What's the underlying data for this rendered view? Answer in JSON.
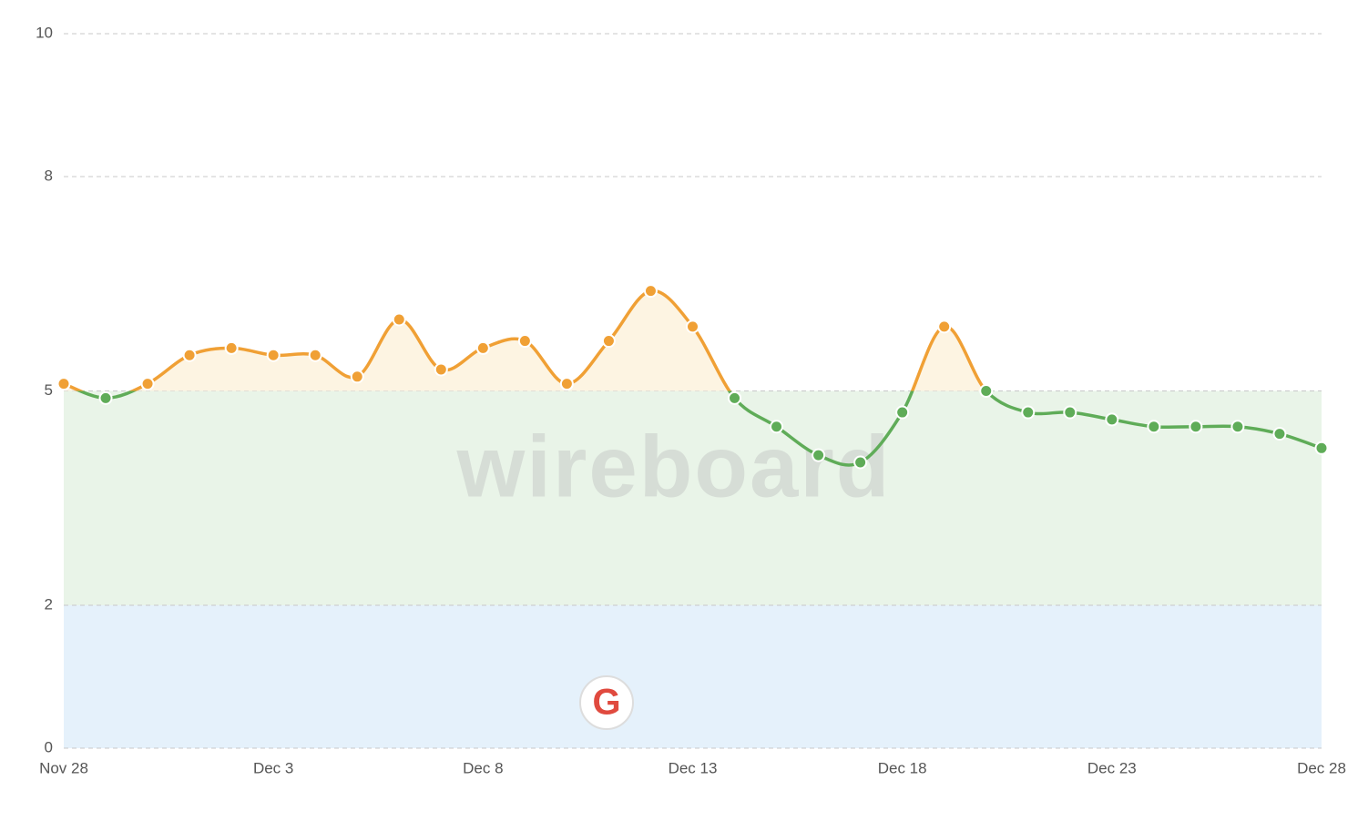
{
  "chart_data": {
    "type": "line",
    "watermark": "wireboard",
    "event_marker": "G",
    "categories": [
      "Nov 28",
      null,
      null,
      null,
      null,
      "Dec 3",
      null,
      null,
      null,
      null,
      "Dec 8",
      null,
      null,
      null,
      null,
      "Dec 13",
      null,
      null,
      null,
      null,
      "Dec 18",
      null,
      null,
      null,
      null,
      "Dec 23",
      null,
      null,
      null,
      null,
      "Dec 28"
    ],
    "values": [
      5.1,
      4.9,
      5.1,
      5.5,
      5.6,
      5.5,
      5.5,
      5.2,
      6.0,
      5.3,
      5.6,
      5.7,
      5.1,
      5.7,
      6.4,
      5.9,
      4.9,
      4.5,
      4.1,
      4.0,
      4.7,
      5.9,
      5.0,
      4.7,
      4.7,
      4.6,
      4.5,
      4.5,
      4.5,
      4.4,
      4.2
    ],
    "threshold": 5,
    "above_color": "#f0a035",
    "below_color": "#5fac58",
    "above_fill": "#fdf4e2",
    "bands": [
      {
        "from": 0,
        "to": 2,
        "color": "#e5f1fb"
      },
      {
        "from": 2,
        "to": 5,
        "color": "#e9f4e8"
      }
    ],
    "ylim": [
      0,
      10
    ],
    "yticks": [
      0,
      2,
      5,
      8,
      10
    ],
    "grid": true
  }
}
